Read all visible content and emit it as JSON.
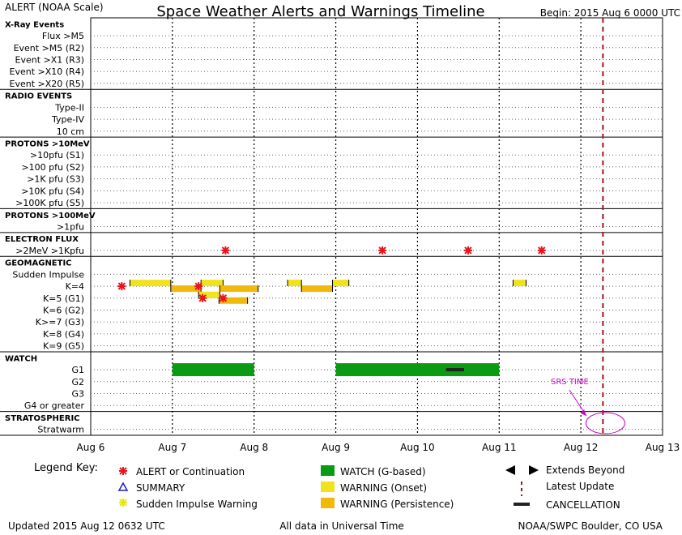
{
  "header": {
    "left": "ALERT (NOAA Scale)",
    "title": "Space Weather Alerts and Warnings Timeline",
    "begin": "Begin: 2015 Aug 6 0000 UTC"
  },
  "chart_data": {
    "type": "timeline",
    "x_unit": "days since 2015 Aug 6 0000 UTC",
    "xlim": [
      0,
      7
    ],
    "x_ticks": [
      {
        "x": 0,
        "label": "Aug 6"
      },
      {
        "x": 1,
        "label": "Aug 7"
      },
      {
        "x": 2,
        "label": "Aug 8"
      },
      {
        "x": 3,
        "label": "Aug 9"
      },
      {
        "x": 4,
        "label": "Aug 10"
      },
      {
        "x": 5,
        "label": "Aug 11"
      },
      {
        "x": 6,
        "label": "Aug 12"
      },
      {
        "x": 7,
        "label": "Aug 13"
      }
    ],
    "rows": [
      {
        "label": "X-Ray Events",
        "header": true
      },
      {
        "label": "Flux >M5"
      },
      {
        "label": "Event >M5 (R2)"
      },
      {
        "label": "Event >X1 (R3)"
      },
      {
        "label": "Event >X10 (R4)"
      },
      {
        "label": "Event >X20 (R5)"
      },
      {
        "label": "RADIO EVENTS",
        "header": true
      },
      {
        "label": "Type-II"
      },
      {
        "label": "Type-IV"
      },
      {
        "label": "10 cm"
      },
      {
        "label": "PROTONS >10MeV",
        "header": true
      },
      {
        "label": ">10pfu (S1)"
      },
      {
        "label": ">100 pfu (S2)"
      },
      {
        "label": ">1K pfu (S3)"
      },
      {
        "label": ">10K pfu (S4)"
      },
      {
        "label": ">100K pfu (S5)"
      },
      {
        "label": "PROTONS >100MeV",
        "header": true
      },
      {
        "label": ">1pfu"
      },
      {
        "label": "ELECTRON FLUX",
        "header": true
      },
      {
        "label": ">2MeV >1Kpfu"
      },
      {
        "label": "GEOMAGNETIC",
        "header": true
      },
      {
        "label": "Sudden Impulse"
      },
      {
        "label": "K=4"
      },
      {
        "label": "K=5 (G1)"
      },
      {
        "label": "K=6 (G2)"
      },
      {
        "label": "K>=7 (G3)"
      },
      {
        "label": "K=8 (G4)"
      },
      {
        "label": "K=9 (G5)"
      },
      {
        "label": "WATCH",
        "header": true
      },
      {
        "label": "G1"
      },
      {
        "label": "G2"
      },
      {
        "label": "G3"
      },
      {
        "label": "G4 or greater"
      },
      {
        "label": "STRATOSPHERIC",
        "header": true
      },
      {
        "label": "Stratwarm"
      }
    ],
    "alerts": [
      {
        "row": ">2MeV >1Kpfu",
        "x": 1.65
      },
      {
        "row": ">2MeV >1Kpfu",
        "x": 3.57
      },
      {
        "row": ">2MeV >1Kpfu",
        "x": 4.62
      },
      {
        "row": ">2MeV >1Kpfu",
        "x": 5.52
      },
      {
        "row": "K=4",
        "x": 0.38
      },
      {
        "row": "K=4",
        "x": 1.32
      },
      {
        "row": "K=5 (G1)",
        "x": 1.37
      },
      {
        "row": "K=5 (G1)",
        "x": 1.62
      }
    ],
    "warnings": [
      {
        "row": "K=4",
        "kind": "onset",
        "start": 0.48,
        "end": 0.98
      },
      {
        "row": "K=4",
        "kind": "persistence",
        "start": 0.98,
        "end": 1.35
      },
      {
        "row": "K=4",
        "kind": "onset",
        "start": 1.35,
        "end": 1.62
      },
      {
        "row": "K=4",
        "kind": "persistence",
        "start": 1.58,
        "end": 2.05
      },
      {
        "row": "K=4",
        "kind": "onset",
        "start": 2.41,
        "end": 2.58
      },
      {
        "row": "K=4",
        "kind": "persistence",
        "start": 2.58,
        "end": 2.96
      },
      {
        "row": "K=4",
        "kind": "onset",
        "start": 2.96,
        "end": 3.16
      },
      {
        "row": "K=4",
        "kind": "onset",
        "start": 5.17,
        "end": 5.33
      },
      {
        "row": "K=5 (G1)",
        "kind": "onset",
        "start": 1.32,
        "end": 1.58
      },
      {
        "row": "K=5 (G1)",
        "kind": "persistence",
        "start": 1.57,
        "end": 1.92
      }
    ],
    "watches": [
      {
        "row": "G1",
        "start": 1.0,
        "end": 2.0
      },
      {
        "row": "G1",
        "start": 3.0,
        "end": 5.0
      }
    ],
    "cancellations": [
      {
        "row": "G1",
        "start": 4.35,
        "end": 4.57
      }
    ],
    "latest_update_x": 6.27,
    "srs_time": {
      "label": "SRS TIME",
      "x": 6.3
    }
  },
  "legend": {
    "title": "Legend Key:",
    "alert": "ALERT or Continuation",
    "summary": "SUMMARY",
    "sudden_impulse": "Sudden Impulse Warning",
    "watch": "WATCH (G-based)",
    "warning_onset": "WARNING (Onset)",
    "warning_persistence": "WARNING (Persistence)",
    "extends": "Extends Beyond",
    "latest": "Latest Update",
    "cancellation": "CANCELLATION"
  },
  "footer": {
    "updated": "Updated 2015 Aug 12 0632 UTC",
    "center": "All data in Universal Time",
    "right": "NOAA/SWPC Boulder, CO USA"
  },
  "colors": {
    "alert": "#e8141c",
    "summary": "#1a1ad0",
    "sudden_impulse": "#e6e619",
    "watch": "#0a9a14",
    "onset": "#f2e21e",
    "persistence": "#f0b90c",
    "latest_update": "#a0141e",
    "srs": "#cc00cc"
  }
}
